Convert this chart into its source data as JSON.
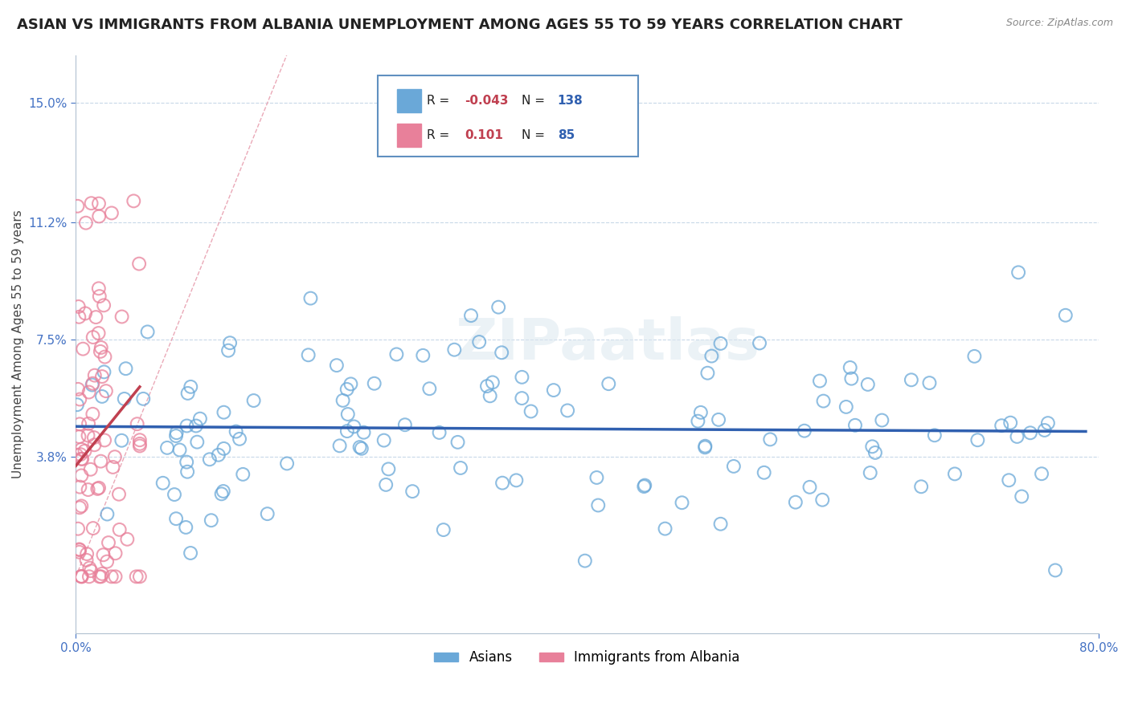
{
  "title": "ASIAN VS IMMIGRANTS FROM ALBANIA UNEMPLOYMENT AMONG AGES 55 TO 59 YEARS CORRELATION CHART",
  "source": "Source: ZipAtlas.com",
  "ylabel": "Unemployment Among Ages 55 to 59 years",
  "xlabel_ticks": [
    "0.0%",
    "80.0%"
  ],
  "ytick_labels": [
    "3.8%",
    "7.5%",
    "11.2%",
    "15.0%"
  ],
  "ytick_values": [
    0.038,
    0.075,
    0.112,
    0.15
  ],
  "xmin": 0.0,
  "xmax": 0.8,
  "ymin": -0.018,
  "ymax": 0.165,
  "asian_R": -0.043,
  "asian_N": 138,
  "albania_R": 0.101,
  "albania_N": 85,
  "legend_asian": "Asians",
  "legend_albania": "Immigrants from Albania",
  "dot_color_asian": "#6aa8d8",
  "dot_color_albania": "#e8809a",
  "line_color_asian": "#3060b0",
  "line_color_albania": "#c04050",
  "diagonal_color": "#e8a0b0",
  "watermark": "ZIPaatlas",
  "title_fontsize": 13,
  "label_fontsize": 11,
  "tick_fontsize": 11,
  "background_color": "#ffffff",
  "grid_color": "#c8d8e8",
  "leg_R_color": "#3060b0",
  "leg_N_color": "#3060b0",
  "leg_Rval_color": "#c04050"
}
